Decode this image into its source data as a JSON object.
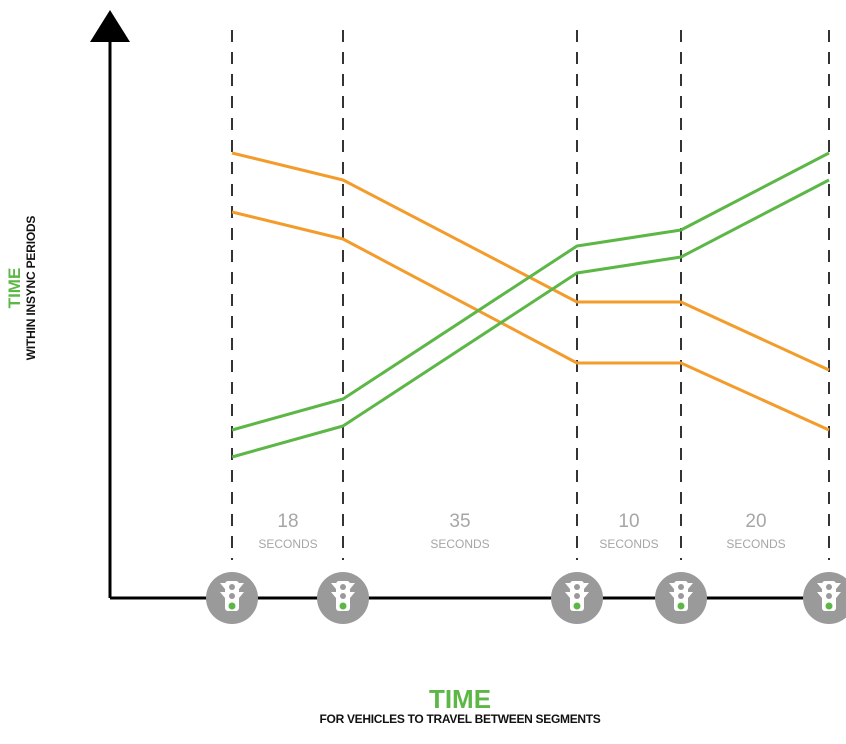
{
  "axes": {
    "y_title": "TIME",
    "y_subtitle": "WITHIN INSYNC PERIODS",
    "x_title": "TIME",
    "x_subtitle": "FOR VEHICLES TO TRAVEL BETWEEN SEGMENTS"
  },
  "segments": [
    {
      "value": "18",
      "unit": "SECONDS"
    },
    {
      "value": "35",
      "unit": "SECONDS"
    },
    {
      "value": "10",
      "unit": "SECONDS"
    },
    {
      "value": "20",
      "unit": "SECONDS"
    }
  ],
  "signals": [
    "traffic-signal",
    "traffic-signal",
    "traffic-signal",
    "traffic-signal",
    "traffic-signal"
  ],
  "colors": {
    "orange": "#f39c2c",
    "green": "#5cb747",
    "axis": "#000000",
    "signal": "#9a9a9a",
    "label_gray": "#a6a6a6"
  }
}
